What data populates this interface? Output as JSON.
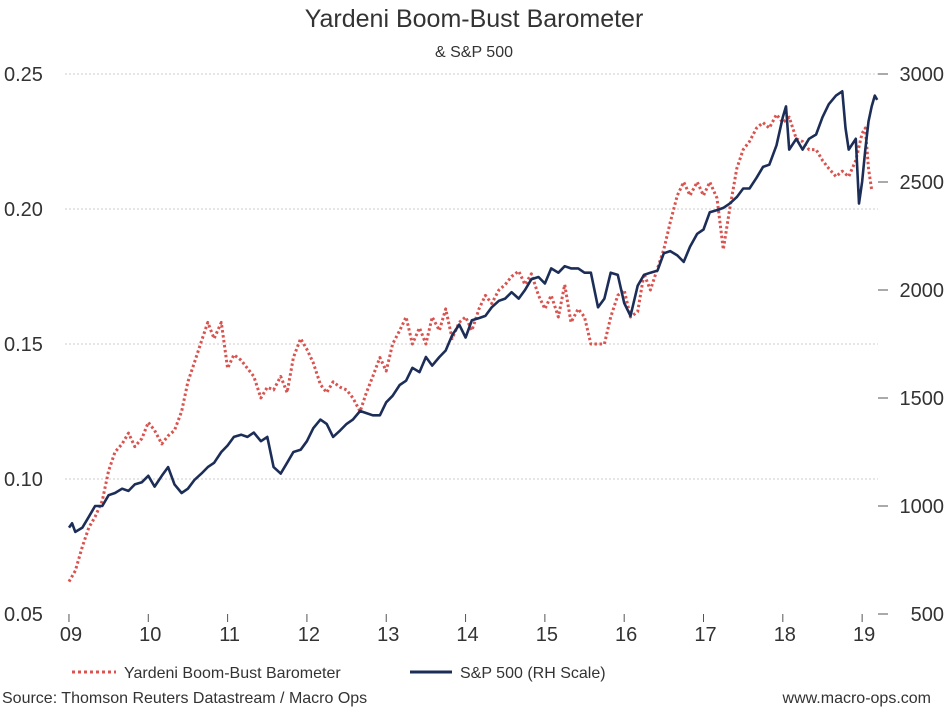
{
  "chart_data": {
    "type": "line",
    "title": "Yardeni Boom-Bust Barometer",
    "subtitle": "& S&P 500",
    "x_ticks": [
      "09",
      "10",
      "11",
      "12",
      "13",
      "14",
      "15",
      "16",
      "17",
      "18",
      "19"
    ],
    "xlim": [
      2008.95,
      2019.2
    ],
    "y_left": {
      "ticks": [
        "0.05",
        "0.10",
        "0.15",
        "0.20",
        "0.25"
      ],
      "ylim": [
        0.05,
        0.25
      ]
    },
    "y_right": {
      "ticks": [
        "500",
        "1000",
        "1500",
        "2000",
        "2500",
        "3000"
      ],
      "ylim": [
        500,
        3000
      ]
    },
    "grid": "horizontal dotted",
    "legend_position": "bottom",
    "series": [
      {
        "name": "Yardeni Boom-Bust Barometer",
        "axis": "left",
        "color": "#d9534f",
        "style": "dotted",
        "points": [
          [
            2009.0,
            0.062
          ],
          [
            2009.08,
            0.066
          ],
          [
            2009.17,
            0.075
          ],
          [
            2009.25,
            0.082
          ],
          [
            2009.33,
            0.086
          ],
          [
            2009.42,
            0.092
          ],
          [
            2009.5,
            0.103
          ],
          [
            2009.58,
            0.11
          ],
          [
            2009.67,
            0.113
          ],
          [
            2009.75,
            0.117
          ],
          [
            2009.83,
            0.112
          ],
          [
            2009.92,
            0.115
          ],
          [
            2010.0,
            0.121
          ],
          [
            2010.08,
            0.118
          ],
          [
            2010.17,
            0.113
          ],
          [
            2010.25,
            0.116
          ],
          [
            2010.33,
            0.118
          ],
          [
            2010.42,
            0.125
          ],
          [
            2010.5,
            0.136
          ],
          [
            2010.58,
            0.143
          ],
          [
            2010.67,
            0.151
          ],
          [
            2010.75,
            0.158
          ],
          [
            2010.83,
            0.152
          ],
          [
            2010.92,
            0.158
          ],
          [
            2011.0,
            0.141
          ],
          [
            2011.08,
            0.146
          ],
          [
            2011.17,
            0.144
          ],
          [
            2011.25,
            0.141
          ],
          [
            2011.33,
            0.138
          ],
          [
            2011.42,
            0.13
          ],
          [
            2011.5,
            0.134
          ],
          [
            2011.58,
            0.133
          ],
          [
            2011.67,
            0.138
          ],
          [
            2011.75,
            0.132
          ],
          [
            2011.83,
            0.145
          ],
          [
            2011.92,
            0.152
          ],
          [
            2012.0,
            0.148
          ],
          [
            2012.08,
            0.143
          ],
          [
            2012.17,
            0.135
          ],
          [
            2012.25,
            0.132
          ],
          [
            2012.33,
            0.136
          ],
          [
            2012.42,
            0.134
          ],
          [
            2012.5,
            0.133
          ],
          [
            2012.58,
            0.13
          ],
          [
            2012.67,
            0.125
          ],
          [
            2012.75,
            0.132
          ],
          [
            2012.83,
            0.138
          ],
          [
            2012.92,
            0.145
          ],
          [
            2013.0,
            0.14
          ],
          [
            2013.08,
            0.15
          ],
          [
            2013.17,
            0.155
          ],
          [
            2013.25,
            0.16
          ],
          [
            2013.33,
            0.15
          ],
          [
            2013.42,
            0.156
          ],
          [
            2013.5,
            0.15
          ],
          [
            2013.58,
            0.16
          ],
          [
            2013.67,
            0.155
          ],
          [
            2013.75,
            0.163
          ],
          [
            2013.83,
            0.152
          ],
          [
            2013.92,
            0.158
          ],
          [
            2014.0,
            0.16
          ],
          [
            2014.08,
            0.155
          ],
          [
            2014.17,
            0.163
          ],
          [
            2014.25,
            0.168
          ],
          [
            2014.33,
            0.165
          ],
          [
            2014.42,
            0.17
          ],
          [
            2014.5,
            0.172
          ],
          [
            2014.58,
            0.175
          ],
          [
            2014.67,
            0.177
          ],
          [
            2014.75,
            0.172
          ],
          [
            2014.83,
            0.176
          ],
          [
            2014.92,
            0.168
          ],
          [
            2015.0,
            0.163
          ],
          [
            2015.08,
            0.168
          ],
          [
            2015.17,
            0.16
          ],
          [
            2015.25,
            0.172
          ],
          [
            2015.33,
            0.158
          ],
          [
            2015.42,
            0.163
          ],
          [
            2015.5,
            0.16
          ],
          [
            2015.58,
            0.15
          ],
          [
            2015.67,
            0.15
          ],
          [
            2015.75,
            0.15
          ],
          [
            2015.83,
            0.16
          ],
          [
            2015.92,
            0.168
          ],
          [
            2016.0,
            0.17
          ],
          [
            2016.08,
            0.16
          ],
          [
            2016.17,
            0.162
          ],
          [
            2016.25,
            0.176
          ],
          [
            2016.33,
            0.17
          ],
          [
            2016.42,
            0.178
          ],
          [
            2016.5,
            0.185
          ],
          [
            2016.58,
            0.195
          ],
          [
            2016.67,
            0.205
          ],
          [
            2016.75,
            0.21
          ],
          [
            2016.83,
            0.205
          ],
          [
            2016.92,
            0.21
          ],
          [
            2017.0,
            0.205
          ],
          [
            2017.08,
            0.21
          ],
          [
            2017.17,
            0.204
          ],
          [
            2017.25,
            0.185
          ],
          [
            2017.33,
            0.2
          ],
          [
            2017.42,
            0.215
          ],
          [
            2017.5,
            0.222
          ],
          [
            2017.58,
            0.225
          ],
          [
            2017.67,
            0.23
          ],
          [
            2017.75,
            0.232
          ],
          [
            2017.83,
            0.23
          ],
          [
            2017.92,
            0.235
          ],
          [
            2018.0,
            0.232
          ],
          [
            2018.08,
            0.234
          ],
          [
            2018.17,
            0.226
          ],
          [
            2018.25,
            0.225
          ],
          [
            2018.33,
            0.222
          ],
          [
            2018.42,
            0.222
          ],
          [
            2018.5,
            0.218
          ],
          [
            2018.58,
            0.215
          ],
          [
            2018.67,
            0.212
          ],
          [
            2018.75,
            0.214
          ],
          [
            2018.83,
            0.212
          ],
          [
            2018.92,
            0.218
          ],
          [
            2019.0,
            0.228
          ],
          [
            2019.04,
            0.23
          ],
          [
            2019.08,
            0.215
          ],
          [
            2019.12,
            0.207
          ]
        ]
      },
      {
        "name": "S&P 500 (RH Scale)",
        "axis": "right",
        "color": "#1c2e58",
        "style": "solid",
        "points": [
          [
            2009.0,
            900
          ],
          [
            2009.04,
            920
          ],
          [
            2009.08,
            880
          ],
          [
            2009.17,
            900
          ],
          [
            2009.25,
            950
          ],
          [
            2009.33,
            1000
          ],
          [
            2009.42,
            1000
          ],
          [
            2009.5,
            1050
          ],
          [
            2009.58,
            1060
          ],
          [
            2009.67,
            1080
          ],
          [
            2009.75,
            1070
          ],
          [
            2009.83,
            1100
          ],
          [
            2009.92,
            1110
          ],
          [
            2010.0,
            1140
          ],
          [
            2010.08,
            1090
          ],
          [
            2010.17,
            1140
          ],
          [
            2010.25,
            1180
          ],
          [
            2010.33,
            1100
          ],
          [
            2010.42,
            1060
          ],
          [
            2010.5,
            1080
          ],
          [
            2010.58,
            1120
          ],
          [
            2010.67,
            1150
          ],
          [
            2010.75,
            1180
          ],
          [
            2010.83,
            1200
          ],
          [
            2010.92,
            1250
          ],
          [
            2011.0,
            1280
          ],
          [
            2011.08,
            1320
          ],
          [
            2011.17,
            1330
          ],
          [
            2011.25,
            1320
          ],
          [
            2011.33,
            1340
          ],
          [
            2011.42,
            1300
          ],
          [
            2011.5,
            1320
          ],
          [
            2011.58,
            1180
          ],
          [
            2011.67,
            1150
          ],
          [
            2011.75,
            1200
          ],
          [
            2011.83,
            1250
          ],
          [
            2011.92,
            1260
          ],
          [
            2012.0,
            1300
          ],
          [
            2012.08,
            1360
          ],
          [
            2012.17,
            1400
          ],
          [
            2012.25,
            1380
          ],
          [
            2012.33,
            1320
          ],
          [
            2012.42,
            1350
          ],
          [
            2012.5,
            1380
          ],
          [
            2012.58,
            1400
          ],
          [
            2012.67,
            1440
          ],
          [
            2012.75,
            1430
          ],
          [
            2012.83,
            1420
          ],
          [
            2012.92,
            1420
          ],
          [
            2013.0,
            1480
          ],
          [
            2013.08,
            1510
          ],
          [
            2013.17,
            1560
          ],
          [
            2013.25,
            1580
          ],
          [
            2013.33,
            1640
          ],
          [
            2013.42,
            1620
          ],
          [
            2013.5,
            1690
          ],
          [
            2013.58,
            1650
          ],
          [
            2013.67,
            1690
          ],
          [
            2013.75,
            1720
          ],
          [
            2013.83,
            1790
          ],
          [
            2013.92,
            1840
          ],
          [
            2014.0,
            1780
          ],
          [
            2014.08,
            1860
          ],
          [
            2014.17,
            1870
          ],
          [
            2014.25,
            1880
          ],
          [
            2014.33,
            1920
          ],
          [
            2014.42,
            1950
          ],
          [
            2014.5,
            1960
          ],
          [
            2014.58,
            1990
          ],
          [
            2014.67,
            1960
          ],
          [
            2014.75,
            2000
          ],
          [
            2014.83,
            2050
          ],
          [
            2014.92,
            2060
          ],
          [
            2015.0,
            2030
          ],
          [
            2015.08,
            2100
          ],
          [
            2015.17,
            2080
          ],
          [
            2015.25,
            2110
          ],
          [
            2015.33,
            2100
          ],
          [
            2015.42,
            2100
          ],
          [
            2015.5,
            2080
          ],
          [
            2015.58,
            2080
          ],
          [
            2015.67,
            1920
          ],
          [
            2015.75,
            1960
          ],
          [
            2015.83,
            2080
          ],
          [
            2015.92,
            2070
          ],
          [
            2016.0,
            1940
          ],
          [
            2016.08,
            1880
          ],
          [
            2016.17,
            2020
          ],
          [
            2016.25,
            2070
          ],
          [
            2016.33,
            2080
          ],
          [
            2016.42,
            2090
          ],
          [
            2016.5,
            2170
          ],
          [
            2016.58,
            2180
          ],
          [
            2016.67,
            2160
          ],
          [
            2016.75,
            2130
          ],
          [
            2016.83,
            2200
          ],
          [
            2016.92,
            2260
          ],
          [
            2017.0,
            2280
          ],
          [
            2017.08,
            2360
          ],
          [
            2017.17,
            2370
          ],
          [
            2017.25,
            2380
          ],
          [
            2017.33,
            2400
          ],
          [
            2017.42,
            2430
          ],
          [
            2017.5,
            2470
          ],
          [
            2017.58,
            2470
          ],
          [
            2017.67,
            2520
          ],
          [
            2017.75,
            2570
          ],
          [
            2017.83,
            2580
          ],
          [
            2017.92,
            2670
          ],
          [
            2018.0,
            2800
          ],
          [
            2018.04,
            2850
          ],
          [
            2018.08,
            2650
          ],
          [
            2018.17,
            2700
          ],
          [
            2018.25,
            2650
          ],
          [
            2018.33,
            2700
          ],
          [
            2018.42,
            2720
          ],
          [
            2018.5,
            2800
          ],
          [
            2018.58,
            2860
          ],
          [
            2018.67,
            2900
          ],
          [
            2018.75,
            2920
          ],
          [
            2018.79,
            2750
          ],
          [
            2018.83,
            2650
          ],
          [
            2018.92,
            2700
          ],
          [
            2018.96,
            2400
          ],
          [
            2019.0,
            2500
          ],
          [
            2019.04,
            2650
          ],
          [
            2019.08,
            2780
          ],
          [
            2019.12,
            2850
          ],
          [
            2019.16,
            2900
          ],
          [
            2019.19,
            2880
          ]
        ]
      }
    ]
  },
  "legend": [
    {
      "label": "Yardeni Boom-Bust Barometer",
      "style": "dotted",
      "color": "#d9534f"
    },
    {
      "label": "S&P 500 (RH Scale)",
      "style": "solid",
      "color": "#1c2e58"
    }
  ],
  "footer": {
    "source": "Source: Thomson Reuters Datastream / Macro Ops",
    "website": "www.macro-ops.com"
  }
}
